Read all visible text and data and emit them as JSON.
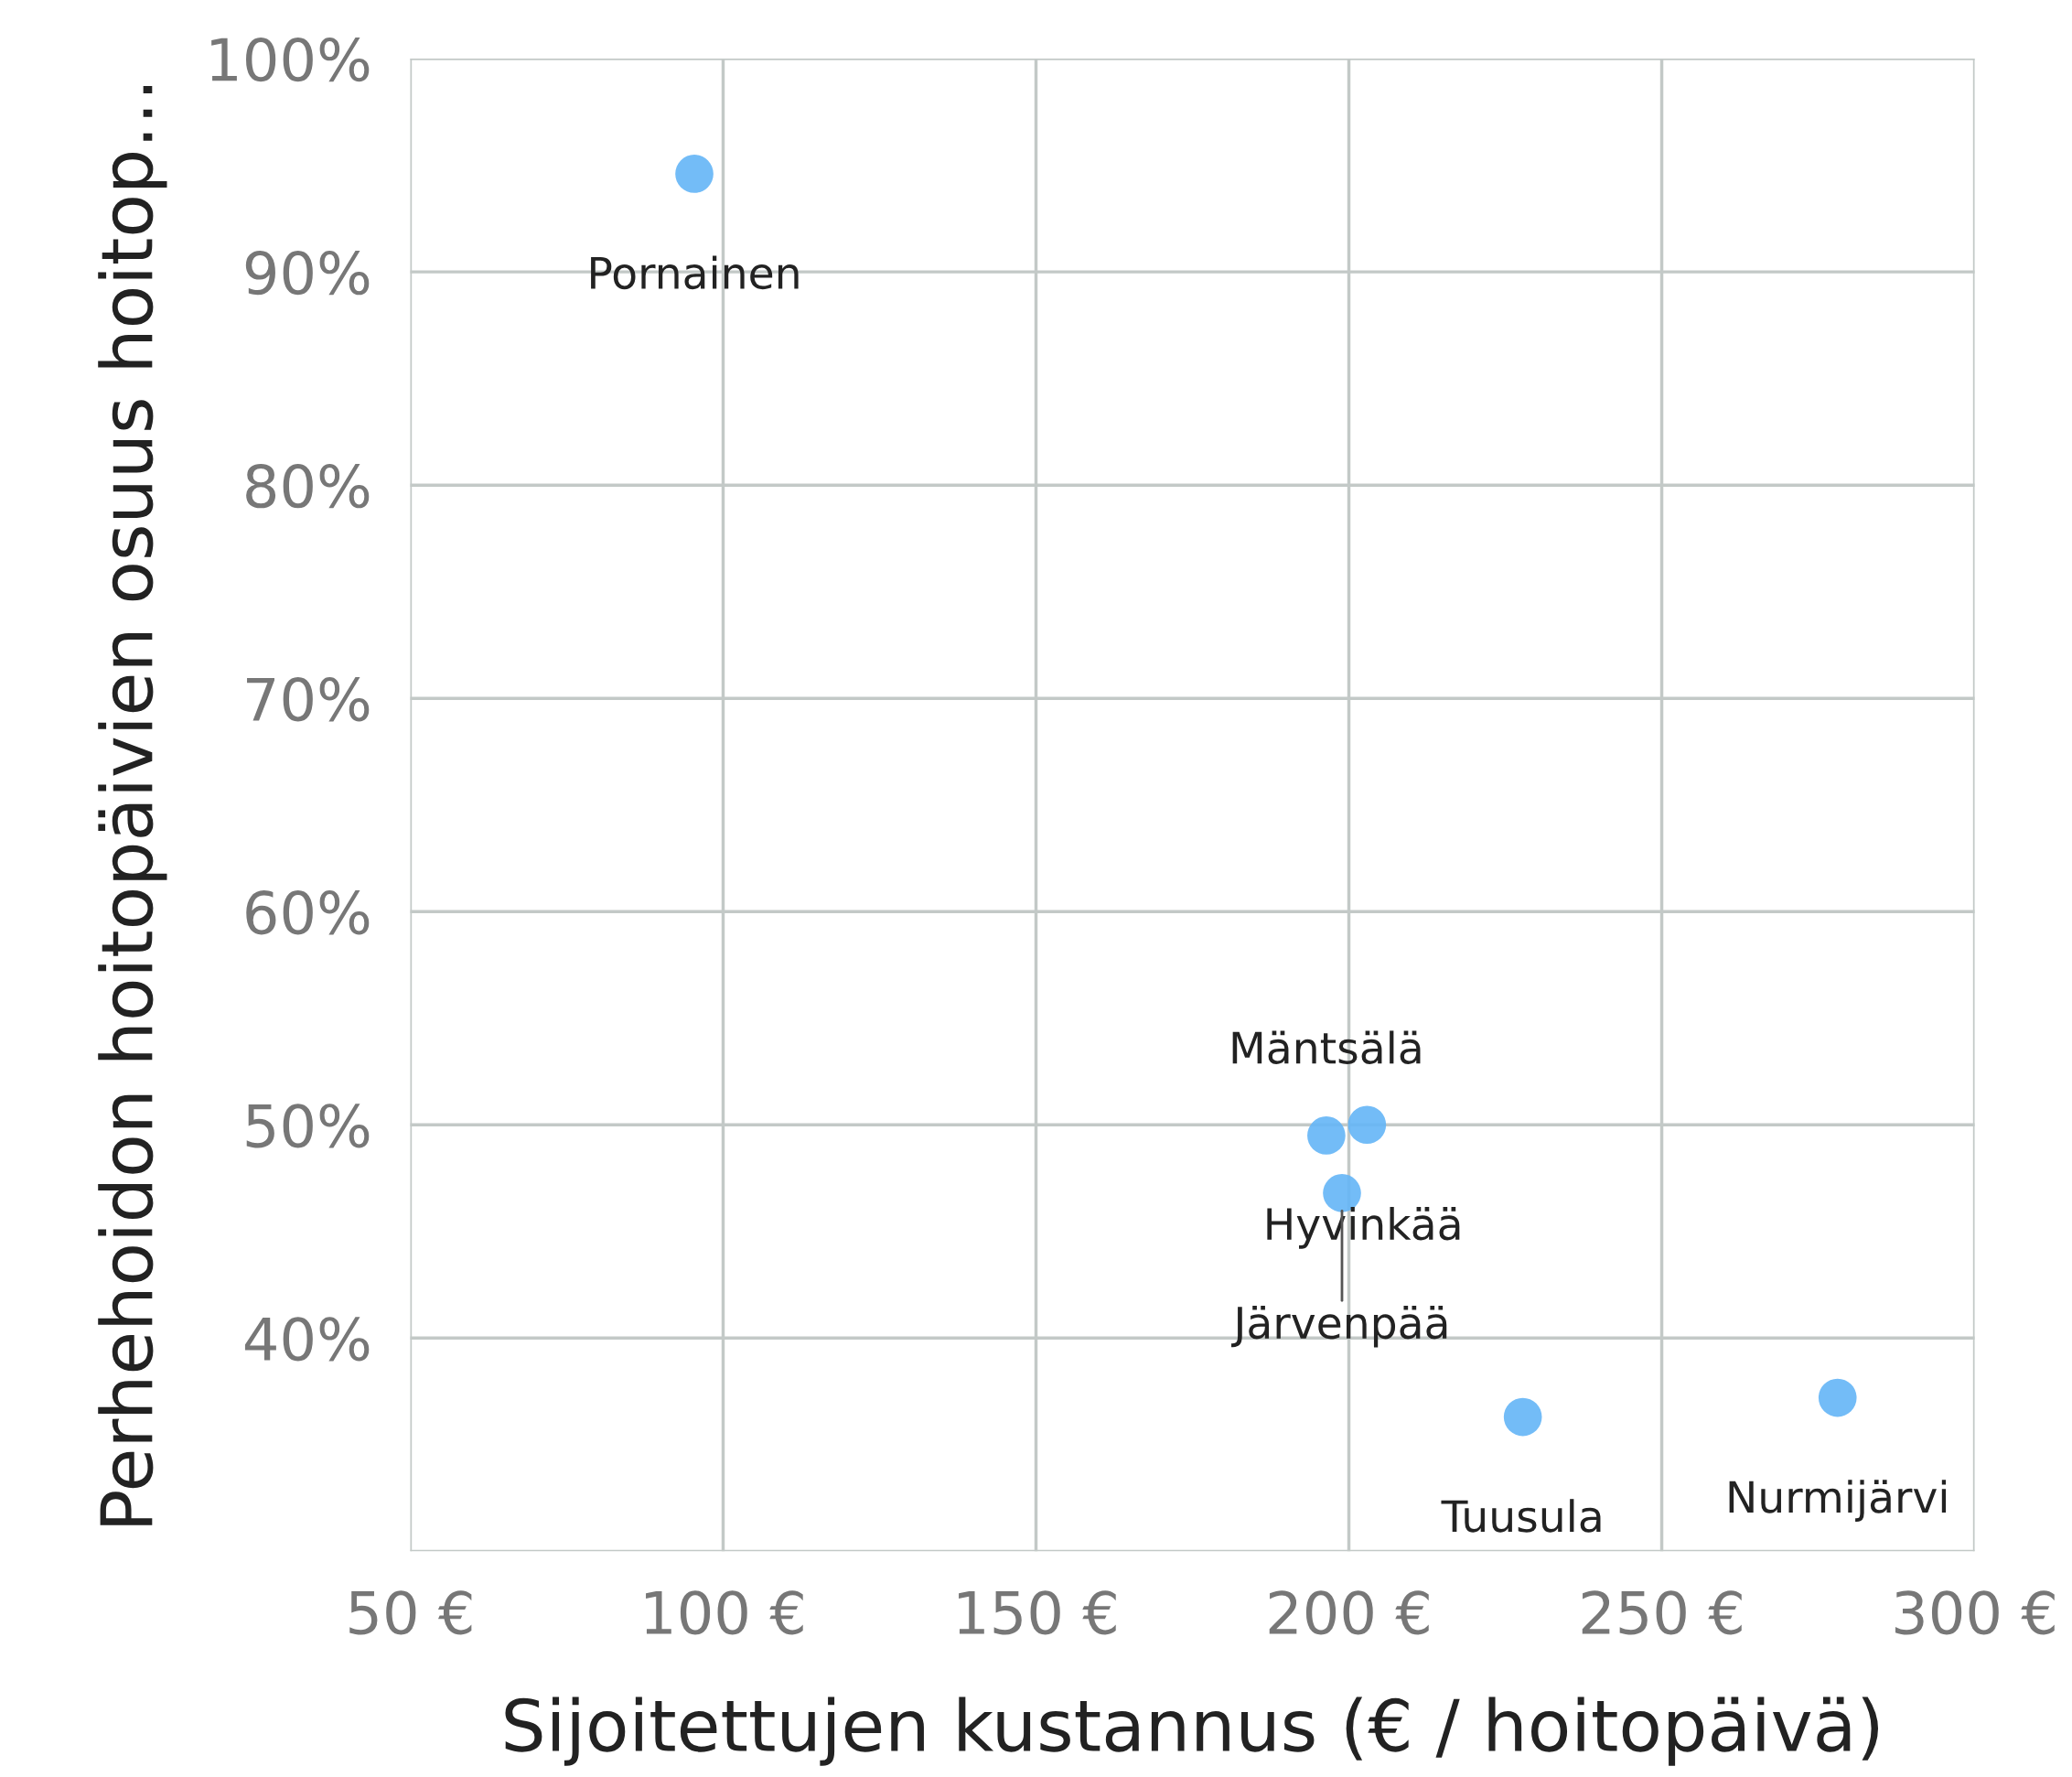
{
  "chart_data": {
    "type": "scatter",
    "xlabel": "Sijoitettujen kustannus (€ / hoitopäivä)",
    "ylabel": "Perhehoidon hoitopäivien osuus hoitop…",
    "series": [
      {
        "color": "#64b5f6",
        "x": [
          95.4,
          196.4,
          202.9,
          198.9,
          227.8,
          278.1
        ],
        "values": [
          94.6,
          49.5,
          50.0,
          46.8,
          36.3,
          37.2
        ]
      }
    ],
    "marker": "circle",
    "grid": true,
    "legend": false,
    "xlim": [
      50,
      300
    ],
    "xticks": [
      {
        "value": 50,
        "label": "50 €"
      },
      {
        "value": 100,
        "label": "100 €"
      },
      {
        "value": 150,
        "label": "150 €"
      },
      {
        "value": 200,
        "label": "200 €"
      },
      {
        "value": 250,
        "label": "250 €"
      },
      {
        "value": 300,
        "label": "300 €"
      }
    ],
    "ylim": [
      30,
      100
    ],
    "yticks": [
      {
        "value": 30,
        "label": null
      },
      {
        "value": 40,
        "label": "40%"
      },
      {
        "value": 50,
        "label": "50%"
      },
      {
        "value": 60,
        "label": "60%"
      },
      {
        "value": 70,
        "label": "70%"
      },
      {
        "value": 80,
        "label": "80%"
      },
      {
        "value": 90,
        "label": "90%"
      },
      {
        "value": 100,
        "label": "100%"
      }
    ],
    "annotations": [
      {
        "text": "Pornainen",
        "x": 95.4,
        "y": 94.6
      },
      {
        "text": "Mäntsälä",
        "x": 196.4,
        "y": 49.5
      },
      {
        "text": "Hyvinkää",
        "x": 202.9,
        "y": 50.0
      },
      {
        "text": "Järvenpää",
        "x": 198.9,
        "y": 46.8
      },
      {
        "text": "Tuusula",
        "x": 227.8,
        "y": 36.3
      },
      {
        "text": "Nurmijärvi",
        "x": 278.1,
        "y": 37.2
      }
    ]
  }
}
